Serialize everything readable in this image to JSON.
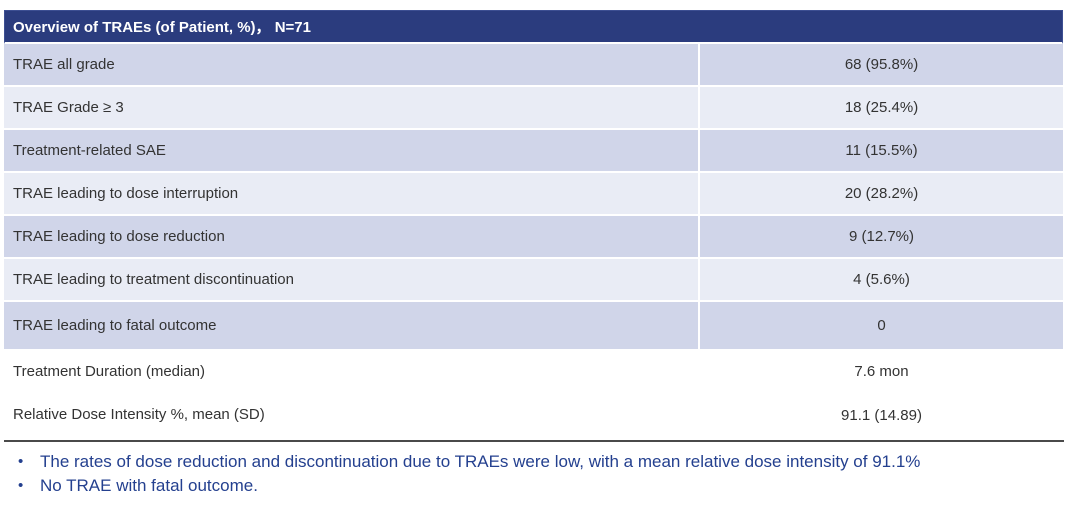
{
  "table": {
    "title": "Overview of TRAEs (of Patient, %)， N=71",
    "rows": [
      {
        "label": "TRAE all grade",
        "value": "68 (95.8%)"
      },
      {
        "label": "TRAE Grade ≥ 3",
        "value": "18 (25.4%)"
      },
      {
        "label": "Treatment-related SAE",
        "value": "11 (15.5%)"
      },
      {
        "label": "TRAE leading to dose interruption",
        "value": "20 (28.2%)"
      },
      {
        "label": "TRAE leading to dose reduction",
        "value": "9 (12.7%)"
      },
      {
        "label": "TRAE leading to treatment discontinuation",
        "value": "4 (5.6%)"
      },
      {
        "label": "TRAE leading to fatal outcome",
        "value": "0"
      }
    ],
    "footer_rows": [
      {
        "label": "Treatment Duration (median)",
        "value": "7.6 mon"
      },
      {
        "label": "Relative Dose Intensity %, mean (SD)",
        "value": "91.1 (14.89)"
      }
    ]
  },
  "bullets": [
    "The rates of dose reduction and discontinuation due to TRAEs were low, with a mean relative dose intensity of 91.1%",
    "No TRAE with fatal outcome."
  ],
  "colors": {
    "header_bg": "#2B3C7E",
    "row_dark": "#D0D5E9",
    "row_light": "#E9ECF5",
    "bullet_text": "#24408F",
    "rule": "#4a4a4a"
  }
}
